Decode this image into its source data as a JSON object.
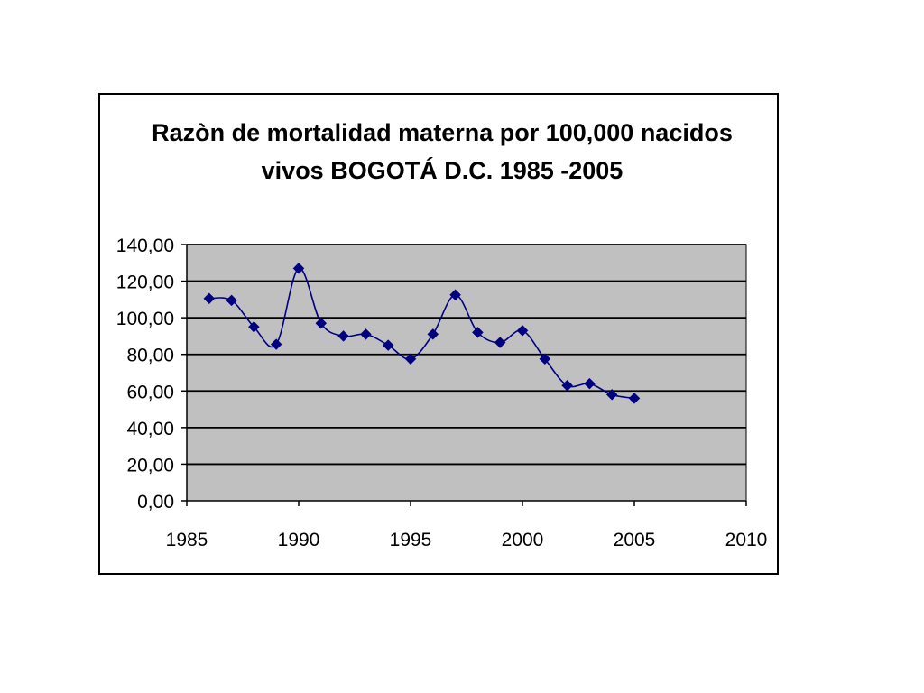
{
  "colors": {
    "plot_background": "#c0c0c0",
    "series": "#000080",
    "gridline": "#000000",
    "frame": "#000000"
  },
  "chart_data": {
    "type": "line",
    "title": "Razòn de mortalidad materna  por 100,000 nacidos vivos BOGOTÁ D.C. 1985 -2005",
    "title_lines": [
      "Razòn de mortalidad materna  por 100,000 nacidos",
      "vivos BOGOTÁ D.C. 1985 -2005"
    ],
    "xlabel": "",
    "ylabel": "",
    "xlim": [
      1985,
      2010
    ],
    "ylim": [
      0,
      140
    ],
    "x_ticks": [
      1985,
      1990,
      1995,
      2000,
      2005,
      2010
    ],
    "x_tick_labels": [
      "1985",
      "1990",
      "1995",
      "2000",
      "2005",
      "2010"
    ],
    "y_ticks": [
      0,
      20,
      40,
      60,
      80,
      100,
      120,
      140
    ],
    "y_tick_labels": [
      "0,00",
      "20,00",
      "40,00",
      "60,00",
      "80,00",
      "100,00",
      "120,00",
      "140,00"
    ],
    "grid": "horizontal",
    "legend": "none",
    "smooth": true,
    "marker": "diamond",
    "series": [
      {
        "x": [
          1986,
          1987,
          1988,
          1989,
          1990,
          1991,
          1992,
          1993,
          1994,
          1995,
          1996,
          1997,
          1998,
          1999,
          2000,
          2001,
          2002,
          2003,
          2004,
          2005
        ],
        "y": [
          110.5,
          109.5,
          95.0,
          85.5,
          127.0,
          97.0,
          90.0,
          91.0,
          85.0,
          77.5,
          91.0,
          112.5,
          92.0,
          86.5,
          93.0,
          77.5,
          63.0,
          64.0,
          58.0,
          56.0
        ]
      }
    ]
  }
}
